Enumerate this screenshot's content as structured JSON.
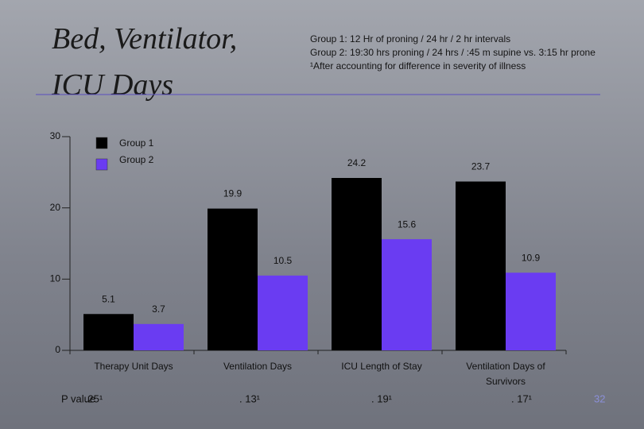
{
  "chart_data": {
    "type": "bar",
    "title": "Bed, Ventilator, ICU Days",
    "notes": [
      "Group 1:  12 Hr of proning / 24 hr / 2 hr intervals",
      "Group 2:  19:30 hrs proning / 24 hrs / :45 m supine vs. 3:15 hr prone",
      "¹After accounting for difference in severity of illness"
    ],
    "categories": [
      "Therapy Unit Days",
      "Ventilation Days",
      "ICU Length of Stay",
      "Ventilation Days of Survivors"
    ],
    "series": [
      {
        "name": "Group 1",
        "color": "#000000",
        "values": [
          5.1,
          19.9,
          24.2,
          23.7
        ]
      },
      {
        "name": "Group 2",
        "color": "#6a3cf2",
        "values": [
          3.7,
          10.5,
          15.6,
          10.9
        ]
      }
    ],
    "ylim": [
      0,
      30
    ],
    "yticks": [
      0,
      10,
      20,
      30
    ],
    "p_value_label": "P value",
    "p_values": [
      ".25¹",
      ". 13¹",
      ". 19¹",
      ". 17¹"
    ],
    "page_number": "32"
  }
}
